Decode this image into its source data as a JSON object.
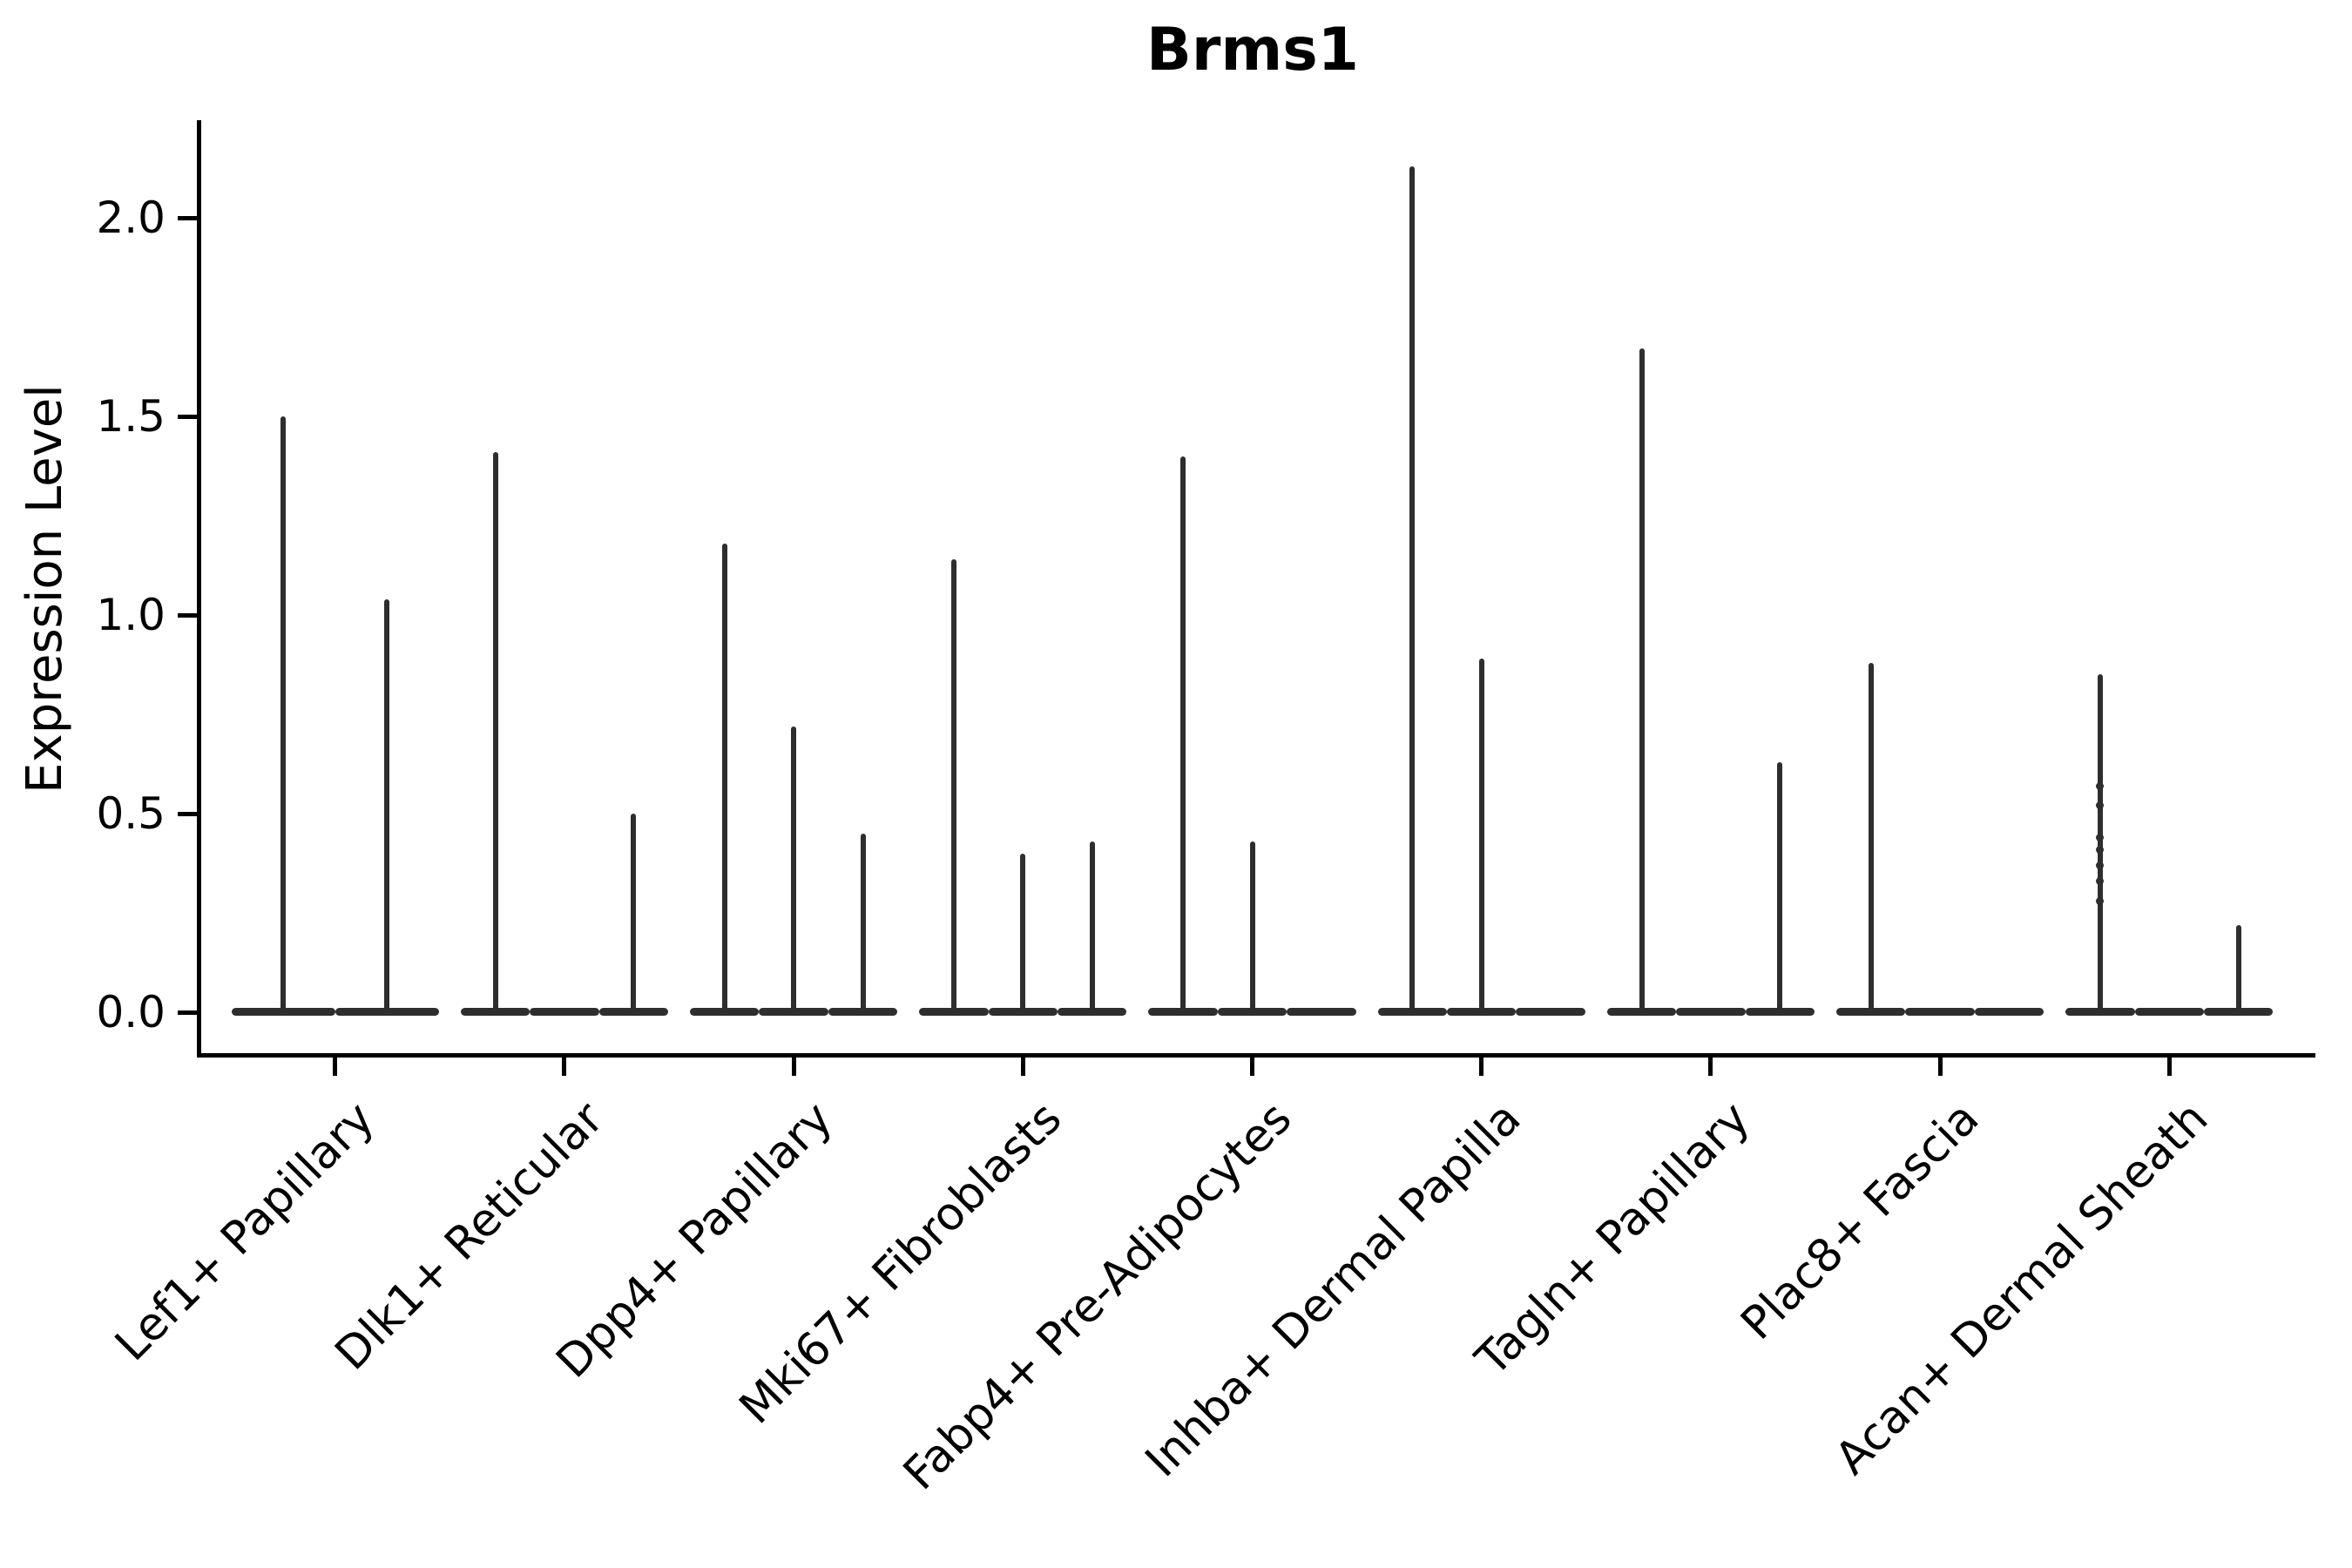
{
  "title": "Brms1",
  "axes": {
    "ylabel": "Expression Level",
    "y_tick_labels": [
      "0.0",
      "0.5",
      "1.0",
      "1.5",
      "2.0"
    ]
  },
  "chart_data": {
    "type": "violin",
    "title": "Brms1",
    "xlabel": "",
    "ylabel": "Expression Level",
    "ylim": [
      -0.11,
      2.24
    ],
    "y_ticks": [
      0.0,
      0.5,
      1.0,
      1.5,
      2.0
    ],
    "y_tick_labels": [
      "0.0",
      "0.5",
      "1.0",
      "1.5",
      "2.0"
    ],
    "grid": false,
    "legend_position": "none",
    "violin_color": "#2e2e2e",
    "axis_color": "#000000",
    "categories": [
      "Lef1+ Papillary",
      "Dlk1+ Reticular",
      "Dpp4+ Papillary",
      "Mki67+ Fibroblasts",
      "Fabp4+ Pre-Adipocytes",
      "Inhba+ Dermal Papilla",
      "Tagln+ Papillary",
      "Plac8+ Fascia",
      "Acan+ Dermal Sheath"
    ],
    "groups": [
      {
        "category": "Lef1+ Papillary",
        "violins": [
          {
            "max": 1.5
          },
          {
            "max": 1.04
          }
        ]
      },
      {
        "category": "Dlk1+ Reticular",
        "violins": [
          {
            "max": 1.41
          },
          {
            "max": 0
          },
          {
            "max": 0.5
          }
        ]
      },
      {
        "category": "Dpp4+ Papillary",
        "violins": [
          {
            "max": 1.18
          },
          {
            "max": 0.72
          },
          {
            "max": 0.45
          }
        ]
      },
      {
        "category": "Mki67+ Fibroblasts",
        "violins": [
          {
            "max": 1.14
          },
          {
            "max": 0.4
          },
          {
            "max": 0.43
          }
        ]
      },
      {
        "category": "Fabp4+ Pre-Adipocytes",
        "violins": [
          {
            "max": 1.4
          },
          {
            "max": 0.43
          },
          {
            "max": 0
          }
        ]
      },
      {
        "category": "Inhba+ Dermal Papilla",
        "violins": [
          {
            "max": 2.13
          },
          {
            "max": 0.89
          },
          {
            "max": 0
          }
        ]
      },
      {
        "category": "Tagln+ Papillary",
        "violins": [
          {
            "max": 1.67
          },
          {
            "max": 0
          },
          {
            "max": 0.63
          }
        ]
      },
      {
        "category": "Plac8+ Fascia",
        "violins": [
          {
            "max": 0.88
          },
          {
            "max": 0
          },
          {
            "max": 0
          }
        ]
      },
      {
        "category": "Acan+ Dermal Sheath",
        "violins": [
          {
            "max": 0.85,
            "points": [
              0.57,
              0.52,
              0.44,
              0.41,
              0.37,
              0.33,
              0.28
            ]
          },
          {
            "max": 0
          },
          {
            "max": 0.22
          }
        ]
      }
    ]
  }
}
